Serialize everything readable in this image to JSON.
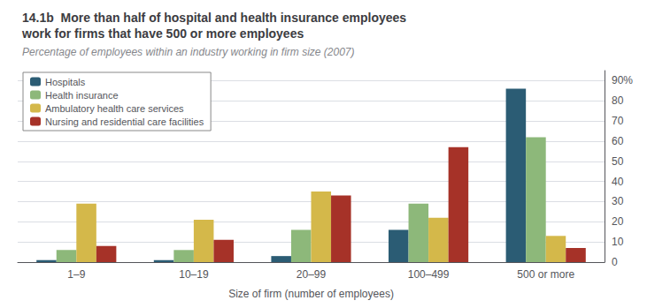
{
  "chart_data": {
    "type": "bar",
    "title": "14.1b  More than half of hospital and health insurance employees\nwork for firms that have 500 or more employees",
    "subtitle": "Percentage of employees within an industry working in firm size (2007)",
    "xlabel": "Size of firm (number of employees)",
    "categories": [
      "1–9",
      "10–19",
      "20–99",
      "100–499",
      "500 or more"
    ],
    "series": [
      {
        "name": "Hospitals",
        "color": "#2b5c74",
        "values": [
          1,
          1,
          3,
          16,
          86
        ]
      },
      {
        "name": "Health insurance",
        "color": "#8db87a",
        "values": [
          6,
          6,
          16,
          29,
          62
        ]
      },
      {
        "name": "Ambulatory health care services",
        "color": "#d4b84a",
        "values": [
          29,
          21,
          35,
          22,
          13
        ]
      },
      {
        "name": "Nursing and residential care facilities",
        "color": "#a63228",
        "values": [
          8,
          11,
          33,
          57,
          7
        ]
      }
    ],
    "ylim": [
      0,
      95
    ],
    "yticks": [
      0,
      10,
      20,
      30,
      40,
      50,
      60,
      70,
      80,
      {
        "value": 90,
        "label": "90%"
      }
    ],
    "grid": true,
    "legend": "upper left"
  }
}
